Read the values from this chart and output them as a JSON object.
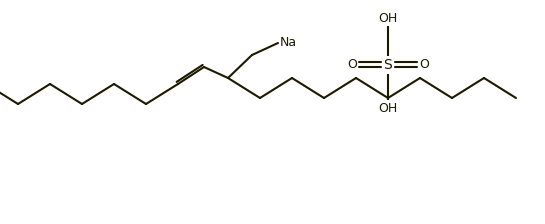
{
  "line_color": "#1a1a00",
  "line_width": 1.5,
  "bg_color": "#ffffff",
  "text_color": "#1a1a00",
  "font_size": 9,
  "na_label": "Na",
  "oh_top_label": "OH",
  "oh_bottom_label": "OH",
  "s_label": "S",
  "o_left_label": "O",
  "o_right_label": "O",
  "figsize": [
    5.45,
    2.24
  ],
  "dpi": 100
}
